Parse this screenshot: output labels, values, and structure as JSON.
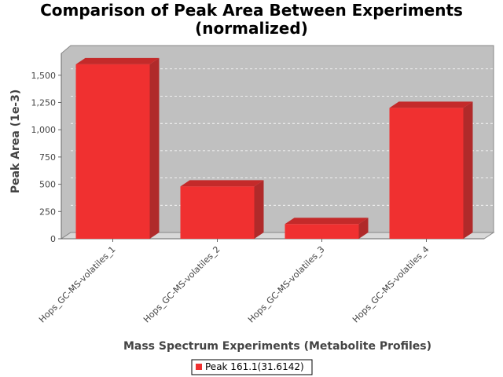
{
  "chart_data": {
    "type": "bar",
    "title_line1": "Comparison of Peak Area Between Experiments",
    "title_line2": "(normalized)",
    "xlabel": "Mass Spectrum Experiments (Metabolite Profiles)",
    "ylabel": "Peak Area (1e-3)",
    "categories": [
      "Hops_GC-MS-volatiles_1",
      "Hops_GC-MS-volatiles_2",
      "Hops_GC-MS-volatiles_3",
      "Hops_GC-MS-volatiles_4"
    ],
    "series": [
      {
        "name": "Peak 161.1(31.6142)",
        "values": [
          1600,
          480,
          135,
          1200
        ]
      }
    ],
    "ylim": [
      0,
      1700
    ],
    "yticks": [
      0,
      250,
      500,
      750,
      1000,
      1250,
      1500
    ],
    "ytick_labels": [
      "0",
      "250",
      "500",
      "750",
      "1,000",
      "1,250",
      "1,500"
    ],
    "grid": true,
    "legend_position": "bottom-center",
    "colors": {
      "bar_front": "#f03030",
      "bar_top": "#c42a2a",
      "bar_side": "#b02a2a",
      "plot_bg": "#c0c0c0",
      "plot_wall": "#d8d8d8"
    }
  }
}
